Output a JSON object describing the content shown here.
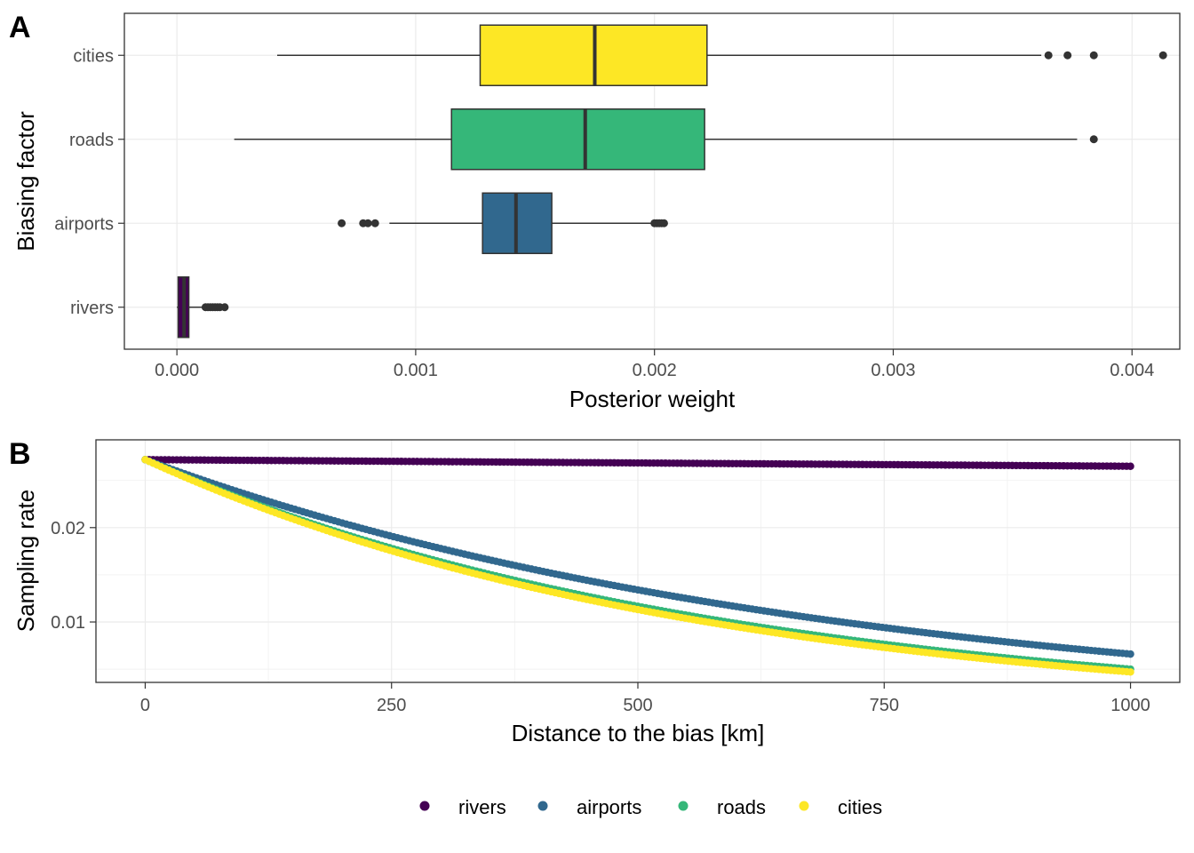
{
  "panels": {
    "a": {
      "tag": "A"
    },
    "b": {
      "tag": "B"
    }
  },
  "colors": {
    "rivers": "#440154",
    "airports": "#31688e",
    "roads": "#35b779",
    "cities": "#fde725",
    "outline": "#333333",
    "grid": "#ebebeb"
  },
  "chart_data": [
    {
      "type": "box",
      "panel": "A",
      "xlabel": "Posterior weight",
      "ylabel": "Biasing factor",
      "xlim": [
        -0.00022,
        0.0042
      ],
      "xticks": [
        0,
        0.001,
        0.002,
        0.003,
        0.004
      ],
      "xtick_labels": [
        "0.000",
        "0.001",
        "0.002",
        "0.003",
        "0.004"
      ],
      "grid": true,
      "categories": [
        "cities",
        "roads",
        "airports",
        "rivers"
      ],
      "boxes": [
        {
          "name": "cities",
          "color": "cities",
          "whisker_low": 0.00042,
          "q1": 0.00127,
          "median": 0.00175,
          "q3": 0.00222,
          "whisker_high": 0.00362,
          "outliers": [
            0.00365,
            0.00373,
            0.00384,
            0.00413
          ]
        },
        {
          "name": "roads",
          "color": "roads",
          "whisker_low": 0.00024,
          "q1": 0.00115,
          "median": 0.00171,
          "q3": 0.00221,
          "whisker_high": 0.00377,
          "outliers": [
            0.00384
          ]
        },
        {
          "name": "airports",
          "color": "airports",
          "whisker_low": 0.00089,
          "q1": 0.00128,
          "median": 0.00142,
          "q3": 0.00157,
          "whisker_high": 0.00199,
          "outliers": [
            0.00069,
            0.00078,
            0.0008,
            0.00083,
            0.002,
            0.00201,
            0.00202,
            0.00203,
            0.00204
          ]
        },
        {
          "name": "rivers",
          "color": "rivers",
          "whisker_low": 0.0,
          "q1": 5e-06,
          "median": 3e-05,
          "q3": 5e-05,
          "whisker_high": 0.00011,
          "outliers": [
            0.00012,
            0.00013,
            0.00014,
            0.00015,
            0.00016,
            0.00017,
            0.00018,
            0.0002
          ]
        }
      ]
    },
    {
      "type": "scatter",
      "panel": "B",
      "xlabel": "Distance to the bias [km]",
      "ylabel": "Sampling rate",
      "xlim": [
        -50,
        1050
      ],
      "ylim": [
        0.0036,
        0.0293
      ],
      "xticks": [
        0,
        250,
        500,
        750,
        1000
      ],
      "xtick_labels": [
        "0",
        "250",
        "500",
        "750",
        "1000"
      ],
      "yticks": [
        0.01,
        0.02
      ],
      "ytick_labels": [
        "0.01",
        "0.02"
      ],
      "grid": true,
      "legend_position": "bottom",
      "series": [
        {
          "name": "rivers",
          "color": "rivers",
          "x": [
            0,
            1000
          ],
          "y": [
            0.0272,
            0.0265
          ],
          "decay_per_km": 2.61e-05
        },
        {
          "name": "airports",
          "color": "airports",
          "x": [
            0,
            1000
          ],
          "y": [
            0.0272,
            0.0066
          ],
          "decay_per_km": 0.001416
        },
        {
          "name": "roads",
          "color": "roads",
          "x": [
            0,
            1000
          ],
          "y": [
            0.0272,
            0.005
          ],
          "decay_per_km": 0.001693
        },
        {
          "name": "cities",
          "color": "cities",
          "x": [
            0,
            1000
          ],
          "y": [
            0.0272,
            0.0047
          ],
          "decay_per_km": 0.001755
        }
      ]
    }
  ]
}
